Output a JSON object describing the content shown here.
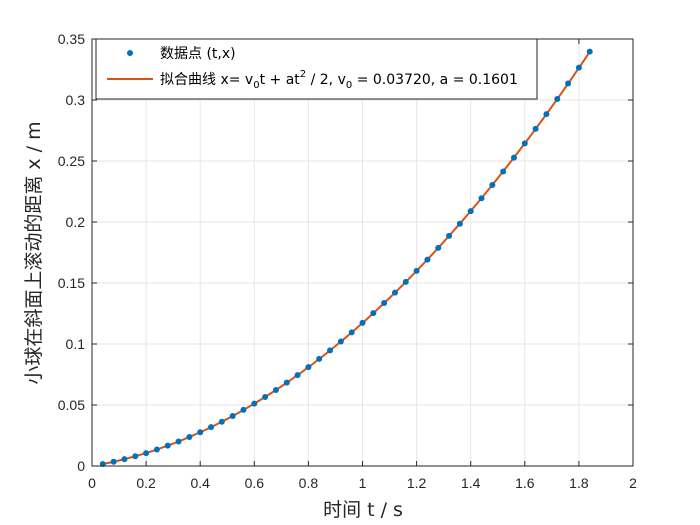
{
  "chart_data": {
    "type": "scatter",
    "title": "",
    "xlabel": "时间 t / s",
    "ylabel": "小球在斜面上滚动的距离 x / m",
    "xlim": [
      0,
      2
    ],
    "ylim": [
      0,
      0.35
    ],
    "xticks": [
      "0",
      "0.2",
      "0.4",
      "0.6",
      "0.8",
      "1",
      "1.2",
      "1.4",
      "1.6",
      "1.8",
      "2"
    ],
    "yticks": [
      "0",
      "0.05",
      "0.1",
      "0.15",
      "0.2",
      "0.25",
      "0.3",
      "0.35"
    ],
    "grid": true,
    "legend_position": "top-left",
    "colors": {
      "points": "#0072BD",
      "fit": "#D95319",
      "grid": "#e6e6e6",
      "axis": "#262626"
    },
    "fit": {
      "type": "line",
      "v0": 0.0372,
      "a": 0.1601
    },
    "legend": {
      "points_label": "数据点 (t,x)",
      "fit_prefix": "拟合曲线 x= v",
      "fit_sub0": "0",
      "fit_mid1": "t + at",
      "fit_sup": "2",
      "fit_mid2": " / 2, v",
      "fit_sub1": "0",
      "fit_suffix": " = 0.03720, a = 0.1601"
    },
    "series": [
      {
        "name": "数据点 (t,x)",
        "type": "scatter",
        "points": [
          [
            0.04,
            0.0016
          ],
          [
            0.08,
            0.0035
          ],
          [
            0.12,
            0.0056
          ],
          [
            0.16,
            0.008
          ],
          [
            0.2,
            0.0106
          ],
          [
            0.24,
            0.0135
          ],
          [
            0.28,
            0.0167
          ],
          [
            0.32,
            0.0201
          ],
          [
            0.36,
            0.0238
          ],
          [
            0.4,
            0.0277
          ],
          [
            0.44,
            0.0319
          ],
          [
            0.48,
            0.0363
          ],
          [
            0.52,
            0.041
          ],
          [
            0.56,
            0.046
          ],
          [
            0.6,
            0.0511
          ],
          [
            0.64,
            0.0566
          ],
          [
            0.68,
            0.0623
          ],
          [
            0.72,
            0.0683
          ],
          [
            0.76,
            0.0745
          ],
          [
            0.8,
            0.081
          ],
          [
            0.84,
            0.0878
          ],
          [
            0.88,
            0.0948
          ],
          [
            0.92,
            0.102
          ],
          [
            0.96,
            0.1095
          ],
          [
            1.0,
            0.1173
          ],
          [
            1.04,
            0.1253
          ],
          [
            1.08,
            0.1336
          ],
          [
            1.12,
            0.1421
          ],
          [
            1.16,
            0.1509
          ],
          [
            1.2,
            0.1599
          ],
          [
            1.24,
            0.1692
          ],
          [
            1.28,
            0.1788
          ],
          [
            1.32,
            0.1886
          ],
          [
            1.36,
            0.1986
          ],
          [
            1.4,
            0.2089
          ],
          [
            1.44,
            0.2195
          ],
          [
            1.48,
            0.2303
          ],
          [
            1.52,
            0.2414
          ],
          [
            1.56,
            0.2528
          ],
          [
            1.6,
            0.2644
          ],
          [
            1.64,
            0.2763
          ],
          [
            1.68,
            0.2884
          ],
          [
            1.72,
            0.3008
          ],
          [
            1.76,
            0.3135
          ],
          [
            1.8,
            0.3265
          ],
          [
            1.84,
            0.3397
          ]
        ]
      }
    ]
  }
}
